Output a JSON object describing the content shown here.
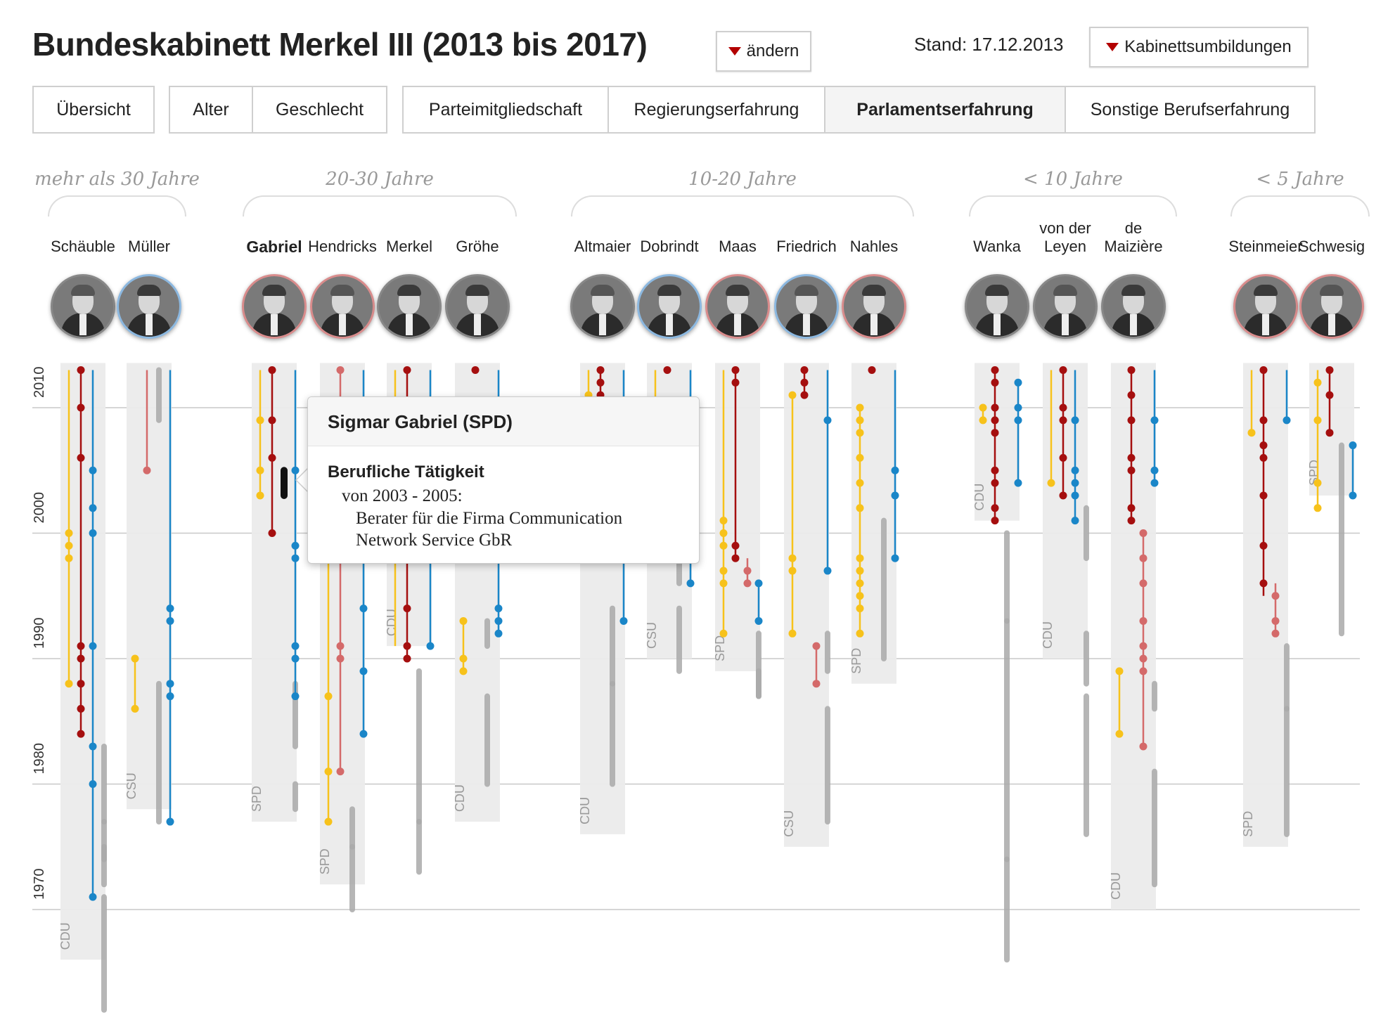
{
  "header": {
    "title": "Bundeskabinett  Merkel III (2013 bis 2017)",
    "change_label": "ändern",
    "stand_label": "Stand: 17.12.2013",
    "reshuffle_label": "Kabinettsumbildungen"
  },
  "tabs": [
    {
      "id": "uebersicht",
      "label": "Übersicht"
    },
    {
      "id": "alter",
      "label": "Alter"
    },
    {
      "id": "geschlecht",
      "label": "Geschlecht"
    },
    {
      "id": "partei",
      "label": "Parteimitgliedschaft"
    },
    {
      "id": "regierung",
      "label": "Regierungserfahrung"
    },
    {
      "id": "parlament",
      "label": "Parlamentserfahrung"
    },
    {
      "id": "sonstige",
      "label": "Sonstige Berufserfahrung"
    }
  ],
  "active_tab": "parlament",
  "groups": [
    {
      "label": "mehr als 30 Jahre"
    },
    {
      "label": "20-30 Jahre"
    },
    {
      "label": "10-20 Jahre"
    },
    {
      "label": "< 10 Jahre"
    },
    {
      "label": "< 5 Jahre"
    }
  ],
  "colors": {
    "partei_gelb": "#f7c21b",
    "dunkelrot": "#a50f0f",
    "hellrot": "#d46a6a",
    "blau": "#1a86c8",
    "grau": "#aaaaaa",
    "hintergrund": "#ebebeb",
    "gitter": "#c8c8c8",
    "spd_ring": "#d98c8c",
    "csu_ring": "#8cb8e0"
  },
  "tooltip": {
    "title": "Sigmar Gabriel (SPD)",
    "subtitle": "Berufliche Tätigkeit",
    "period": "von 2003 - 2005:",
    "description": "Berater für die Firma Communication Network Service GbR"
  },
  "chart_data": {
    "type": "timeline",
    "ylim": [
      1961,
      2013
    ],
    "y_ticks": [
      1970,
      1980,
      1990,
      2000,
      2010
    ],
    "people": [
      {
        "name": "Schäuble",
        "party": "CDU",
        "group": 0,
        "bar_start": 1966,
        "tracks": [
          {
            "color": "partei_gelb",
            "from": 1988,
            "to": 2013,
            "dots": [
              2000,
              1999,
              1998,
              1988
            ]
          },
          {
            "color": "dunkelrot",
            "from": 1984,
            "to": 2013,
            "dots": [
              2013,
              2010,
              2006,
              1991,
              1990,
              1988,
              1986,
              1984
            ]
          },
          {
            "color": "blau",
            "from": 1971,
            "to": 2013,
            "dots": [
              2005,
              2002,
              2000,
              1991,
              1983,
              1980,
              1971
            ]
          },
          {
            "color": "grau",
            "bars": [
              [
                1962,
                1971
              ],
              [
                1972,
                1977
              ],
              [
                1974,
                1975
              ],
              [
                1977,
                1983
              ]
            ]
          }
        ]
      },
      {
        "name": "Müller",
        "party": "CSU",
        "group": 0,
        "bar_start": 1978,
        "tracks": [
          {
            "color": "partei_gelb",
            "from": 1986,
            "to": 1990,
            "dots": [
              1990,
              1986
            ]
          },
          {
            "color": "hellrot",
            "from": 2005,
            "to": 2013,
            "dots": [
              2005
            ]
          },
          {
            "color": "grau",
            "bars": [
              [
                2009,
                2013
              ],
              [
                1977,
                1988
              ]
            ]
          },
          {
            "color": "blau",
            "from": 1977,
            "to": 2013,
            "dots": [
              1994,
              1993,
              1988,
              1987,
              1977
            ]
          }
        ]
      },
      {
        "name": "Gabriel",
        "party": "SPD",
        "group": 1,
        "bold": true,
        "bar_start": 1977,
        "tracks": [
          {
            "color": "partei_gelb",
            "from": 2003,
            "to": 2013,
            "dots": [
              2009,
              2005,
              2003
            ]
          },
          {
            "color": "dunkelrot",
            "from": 2000,
            "to": 2013,
            "dots": [
              2013,
              2009,
              2006,
              2000
            ]
          },
          {
            "color": "highlight",
            "bars": [
              [
                2003,
                2005
              ]
            ]
          },
          {
            "color": "grau",
            "bars": [
              [
                1983,
                1988
              ],
              [
                1978,
                1980
              ]
            ]
          },
          {
            "color": "blau",
            "from": 1987,
            "to": 2013,
            "dots": [
              2005,
              1999,
              1998,
              1991,
              1990,
              1987
            ]
          }
        ]
      },
      {
        "name": "Hendricks",
        "party": "SPD",
        "group": 1,
        "bar_start": 1972,
        "tracks": [
          {
            "color": "partei_gelb",
            "from": 1977,
            "to": 2000,
            "dots": [
              1987,
              1981,
              1977
            ]
          },
          {
            "color": "hellrot",
            "from": 1981,
            "to": 2013,
            "dots": [
              2013,
              1991,
              1990,
              1981
            ]
          },
          {
            "color": "grau",
            "bars": [
              [
                1975,
                1978
              ],
              [
                1970,
                1975
              ]
            ]
          },
          {
            "color": "blau",
            "from": 1984,
            "to": 2013,
            "dots": [
              1994,
              1989,
              1984
            ]
          }
        ]
      },
      {
        "name": "Merkel",
        "party": "CDU",
        "group": 1,
        "bar_start": 1991,
        "tracks": [
          {
            "color": "partei_gelb",
            "from": 1991,
            "to": 2013,
            "dots": []
          },
          {
            "color": "dunkelrot",
            "from": 1990,
            "to": 2013,
            "dots": [
              2013,
              1994,
              1991,
              1990
            ]
          },
          {
            "color": "grau",
            "bars": [
              [
                1977,
                1989
              ],
              [
                1973,
                1977
              ]
            ]
          },
          {
            "color": "blau",
            "from": 1991,
            "to": 2013,
            "dots": [
              1991
            ]
          }
        ]
      },
      {
        "name": "Gröhe",
        "party": "CDU",
        "group": 1,
        "bar_start": 1977,
        "tracks": [
          {
            "color": "partei_gelb",
            "from": 1989,
            "to": 1993,
            "dots": [
              1993,
              1990,
              1989
            ]
          },
          {
            "color": "dunkelrot",
            "from": 2013,
            "to": 2013,
            "dots": [
              2013
            ]
          },
          {
            "color": "grau",
            "bars": [
              [
                1991,
                1993
              ],
              [
                1980,
                1987
              ]
            ]
          },
          {
            "color": "blau",
            "from": 1992,
            "to": 2013,
            "dots": [
              1994,
              1993,
              1992
            ]
          }
        ]
      },
      {
        "name": "Altmaier",
        "party": "CDU",
        "group": 2,
        "bar_start": 1976,
        "tracks": [
          {
            "color": "partei_gelb",
            "from": 2010,
            "to": 2013,
            "dots": [
              2011
            ]
          },
          {
            "color": "dunkelrot",
            "from": 2011,
            "to": 2013,
            "dots": [
              2013,
              2012,
              2011
            ]
          },
          {
            "color": "grau",
            "bars": [
              [
                1980,
                1988
              ],
              [
                1988,
                1994
              ]
            ]
          },
          {
            "color": "blau",
            "from": 1993,
            "to": 2013,
            "dots": [
              1993
            ]
          }
        ]
      },
      {
        "name": "Dobrindt",
        "party": "CSU",
        "group": 2,
        "bar_start": 1990,
        "tracks": [
          {
            "color": "partei_gelb",
            "from": 2009,
            "to": 2013,
            "dots": []
          },
          {
            "color": "dunkelrot",
            "from": 2013,
            "to": 2013,
            "dots": [
              2013
            ]
          },
          {
            "color": "grau",
            "bars": [
              [
                1996,
                1998
              ],
              [
                1989,
                1994
              ]
            ]
          },
          {
            "color": "blau",
            "from": 1996,
            "to": 2013,
            "dots": [
              1996
            ]
          }
        ]
      },
      {
        "name": "Maas",
        "party": "SPD",
        "group": 2,
        "bar_start": 1989,
        "tracks": [
          {
            "color": "partei_gelb",
            "from": 1992,
            "to": 2013,
            "dots": [
              2001,
              2000,
              1999,
              1997,
              1996,
              1992
            ]
          },
          {
            "color": "dunkelrot",
            "from": 1998,
            "to": 2013,
            "dots": [
              2013,
              2012,
              1999,
              1998
            ]
          },
          {
            "color": "hellrot",
            "from": 1996,
            "to": 1998,
            "dots": [
              1997,
              1996
            ]
          },
          {
            "color": "grau",
            "bars": [
              [
                1987,
                1992
              ],
              [
                1987,
                1989
              ]
            ]
          },
          {
            "color": "blau",
            "from": 1993,
            "to": 1996,
            "dots": [
              1996,
              1993
            ]
          }
        ]
      },
      {
        "name": "Friedrich",
        "party": "CSU",
        "group": 2,
        "bar_start": 1975,
        "tracks": [
          {
            "color": "partei_gelb",
            "from": 1992,
            "to": 2011,
            "dots": [
              2011,
              1998,
              1997,
              1992
            ]
          },
          {
            "color": "dunkelrot",
            "from": 2011,
            "to": 2013,
            "dots": [
              2013,
              2012,
              2011
            ]
          },
          {
            "color": "hellrot",
            "from": 1988,
            "to": 1991,
            "dots": [
              1991,
              1988
            ]
          },
          {
            "color": "grau",
            "bars": [
              [
                1989,
                1992
              ],
              [
                1977,
                1986
              ]
            ]
          },
          {
            "color": "blau",
            "from": 1997,
            "to": 2013,
            "dots": [
              2009,
              1997
            ]
          }
        ]
      },
      {
        "name": "Nahles",
        "party": "SPD",
        "group": 2,
        "bar_start": 1988,
        "tracks": [
          {
            "color": "partei_gelb",
            "from": 1992,
            "to": 2010,
            "dots": [
              2010,
              2009,
              2008,
              2006,
              2004,
              2002,
              1998,
              1997,
              1996,
              1995,
              1994,
              1992
            ]
          },
          {
            "color": "dunkelrot",
            "from": 2013,
            "to": 2013,
            "dots": [
              2013
            ]
          },
          {
            "color": "grau",
            "bars": [
              [
                1990,
                2001
              ]
            ]
          },
          {
            "color": "blau",
            "from": 1998,
            "to": 2013,
            "dots": [
              2005,
              2003,
              1998
            ]
          }
        ]
      },
      {
        "name": "Wanka",
        "party": "CDU",
        "group": 3,
        "bar_start": 2001,
        "tracks": [
          {
            "color": "partei_gelb",
            "from": 2009,
            "to": 2010,
            "dots": [
              2010,
              2009
            ]
          },
          {
            "color": "dunkelrot",
            "from": 2001,
            "to": 2013,
            "dots": [
              2013,
              2012,
              2010,
              2009,
              2008,
              2005,
              2004,
              2002,
              2001
            ]
          },
          {
            "color": "grau",
            "bars": [
              [
                1993,
                2000
              ],
              [
                1974,
                1993
              ],
              [
                1966,
                1974
              ]
            ]
          },
          {
            "color": "blau",
            "from": 2004,
            "to": 2012,
            "dots": [
              2012,
              2010,
              2009,
              2004
            ]
          }
        ]
      },
      {
        "name": "von der Leyen",
        "party": "CDU",
        "group": 3,
        "bar_start": 1990,
        "tracks": [
          {
            "color": "partei_gelb",
            "from": 2004,
            "to": 2013,
            "dots": [
              2004
            ]
          },
          {
            "color": "dunkelrot",
            "from": 2003,
            "to": 2013,
            "dots": [
              2013,
              2010,
              2009,
              2006,
              2003
            ]
          },
          {
            "color": "blau",
            "from": 2001,
            "to": 2013,
            "dots": [
              2009,
              2005,
              2004,
              2003,
              2001
            ]
          },
          {
            "color": "grau",
            "bars": [
              [
                1998,
                2002
              ],
              [
                1988,
                1992
              ],
              [
                1976,
                1987
              ]
            ]
          }
        ]
      },
      {
        "name": "de Maizière",
        "party": "CDU",
        "group": 3,
        "bar_start": 1970,
        "tracks": [
          {
            "color": "partei_gelb",
            "from": 1984,
            "to": 1989,
            "dots": [
              1989,
              1984
            ]
          },
          {
            "color": "dunkelrot",
            "from": 2001,
            "to": 2013,
            "dots": [
              2013,
              2011,
              2009,
              2006,
              2005,
              2002,
              2001
            ]
          },
          {
            "color": "hellrot",
            "from": 1983,
            "to": 2000,
            "dots": [
              2000,
              1998,
              1996,
              1993,
              1991,
              1990,
              1989,
              1983
            ]
          },
          {
            "color": "grau",
            "bars": [
              [
                1986,
                1988
              ],
              [
                1972,
                1981
              ]
            ]
          },
          {
            "color": "blau",
            "from": 2004,
            "to": 2013,
            "dots": [
              2009,
              2005,
              2004
            ]
          }
        ]
      },
      {
        "name": "Steinmeier",
        "party": "SPD",
        "group": 4,
        "bar_start": 1975,
        "tracks": [
          {
            "color": "partei_gelb",
            "from": 2008,
            "to": 2013,
            "dots": [
              2008
            ]
          },
          {
            "color": "dunkelrot",
            "from": 1995,
            "to": 2013,
            "dots": [
              2013,
              2009,
              2007,
              2006,
              2003,
              1999,
              1996
            ]
          },
          {
            "color": "hellrot",
            "from": 1992,
            "to": 1996,
            "dots": [
              1995,
              1993,
              1992
            ]
          },
          {
            "color": "grau",
            "bars": [
              [
                1986,
                1991
              ],
              [
                1976,
                1986
              ]
            ]
          },
          {
            "color": "blau",
            "from": 2009,
            "to": 2013,
            "dots": [
              2009
            ]
          }
        ]
      },
      {
        "name": "Schwesig",
        "party": "SPD",
        "group": 4,
        "bar_start": 2003,
        "tracks": [
          {
            "color": "partei_gelb",
            "from": 2002,
            "to": 2013,
            "dots": [
              2012,
              2009,
              2004,
              2002
            ]
          },
          {
            "color": "dunkelrot",
            "from": 2008,
            "to": 2013,
            "dots": [
              2013,
              2011,
              2008
            ]
          },
          {
            "color": "grau",
            "bars": [
              [
                1992,
                2007
              ]
            ]
          },
          {
            "color": "blau",
            "from": 2003,
            "to": 2007,
            "dots": [
              2007,
              2003
            ]
          }
        ]
      }
    ]
  }
}
